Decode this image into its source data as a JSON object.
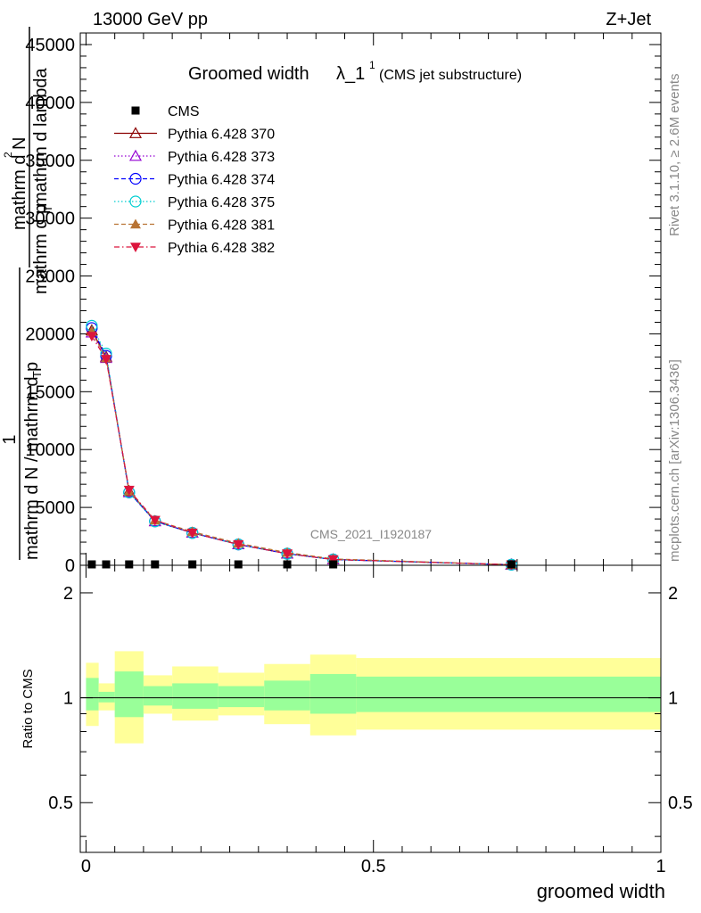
{
  "header": {
    "energy": "13000 GeV pp",
    "process": "Z+Jet",
    "title_main": "Groomed width",
    "title_lambda": "λ_1",
    "title_sup": "1",
    "title_sub": "(CMS jet substructure)",
    "rivet": "Rivet 3.1.10, ≥ 2.6M events",
    "mcplots": "mcplots.cern.ch [arXiv:1306.3436]",
    "watermark": "CMS_2021_I1920187"
  },
  "ylabel_main": {
    "numer1": "1",
    "denom1": "mathrm d N / mathrm d p",
    "denom1_sub": "T",
    "numer2": "mathrm d",
    "numer2_sup": "2",
    "numer2_rest": "N",
    "denom2": "mathrm d p",
    "denom2_sub": "T",
    "denom2_rest": " mathrm d lambda"
  },
  "ratio_panel": {
    "ylabel": "Ratio to CMS",
    "yticks": [
      "0.5",
      "1",
      "2"
    ]
  },
  "xaxis": {
    "label": "groomed width",
    "ticks": [
      "0",
      "0.5",
      "1"
    ]
  },
  "legend": [
    {
      "label": "CMS",
      "color": "#000000",
      "marker": "square",
      "dash": "none"
    },
    {
      "label": "Pythia 6.428 370",
      "color": "#8b0000",
      "marker": "triangle-open",
      "dash": "solid"
    },
    {
      "label": "Pythia 6.428 373",
      "color": "#9400d3",
      "marker": "triangle-open",
      "dash": "dotted"
    },
    {
      "label": "Pythia 6.428 374",
      "color": "#0000ff",
      "marker": "circle-open",
      "dash": "dashed"
    },
    {
      "label": "Pythia 6.428 375",
      "color": "#00ced1",
      "marker": "circle-open",
      "dash": "dotted"
    },
    {
      "label": "Pythia 6.428 381",
      "color": "#b87333",
      "marker": "triangle-filled",
      "dash": "dashed"
    },
    {
      "label": "Pythia 6.428 382",
      "color": "#dc143c",
      "marker": "triangle-down-filled",
      "dash": "dashdot"
    }
  ],
  "chart_data": {
    "type": "line",
    "x": [
      0.01,
      0.035,
      0.075,
      0.12,
      0.185,
      0.265,
      0.35,
      0.43,
      0.74
    ],
    "xlim": [
      -0.01,
      1.0
    ],
    "ylim": [
      0,
      46000
    ],
    "yticks": [
      "0",
      "5000",
      "10000",
      "15000",
      "20000",
      "25000",
      "30000",
      "35000",
      "40000",
      "45000"
    ],
    "cms": [
      0.4,
      0.3,
      0.3,
      0.2,
      0.15,
      0.1,
      0.08,
      0.05,
      0.01
    ],
    "series": [
      {
        "name": "Pythia 6.428 370",
        "values": [
          20300,
          18000,
          6400,
          3800,
          2800,
          1800,
          1000,
          500,
          50
        ]
      },
      {
        "name": "Pythia 6.428 373",
        "values": [
          20100,
          17900,
          6300,
          3800,
          2800,
          1800,
          1000,
          500,
          50
        ]
      },
      {
        "name": "Pythia 6.428 374",
        "values": [
          20500,
          18100,
          6300,
          3800,
          2800,
          1800,
          1000,
          500,
          50
        ]
      },
      {
        "name": "Pythia 6.428 375",
        "values": [
          20700,
          18300,
          6300,
          3800,
          2800,
          1800,
          1000,
          500,
          50
        ]
      },
      {
        "name": "Pythia 6.428 381",
        "values": [
          20200,
          17900,
          6400,
          3900,
          2900,
          1900,
          1100,
          550,
          50
        ]
      },
      {
        "name": "Pythia 6.428 382",
        "values": [
          19800,
          17800,
          6500,
          3900,
          2800,
          1800,
          1000,
          500,
          50
        ]
      }
    ],
    "ratio": {
      "ylim": [
        0.36,
        2.4
      ],
      "log": true,
      "bins": [
        {
          "lo": 0.0,
          "hi": 0.022,
          "in_lo": 0.92,
          "in_hi": 1.14,
          "out_lo": 0.83,
          "out_hi": 1.26
        },
        {
          "lo": 0.022,
          "hi": 0.05,
          "in_lo": 0.97,
          "in_hi": 1.04,
          "out_lo": 0.92,
          "out_hi": 1.1
        },
        {
          "lo": 0.05,
          "hi": 0.1,
          "in_lo": 0.88,
          "in_hi": 1.19,
          "out_lo": 0.74,
          "out_hi": 1.36
        },
        {
          "lo": 0.1,
          "hi": 0.15,
          "in_lo": 0.95,
          "in_hi": 1.08,
          "out_lo": 0.9,
          "out_hi": 1.16
        },
        {
          "lo": 0.15,
          "hi": 0.23,
          "in_lo": 0.93,
          "in_hi": 1.1,
          "out_lo": 0.86,
          "out_hi": 1.23
        },
        {
          "lo": 0.23,
          "hi": 0.31,
          "in_lo": 0.94,
          "in_hi": 1.08,
          "out_lo": 0.89,
          "out_hi": 1.18
        },
        {
          "lo": 0.31,
          "hi": 0.39,
          "in_lo": 0.92,
          "in_hi": 1.12,
          "out_lo": 0.84,
          "out_hi": 1.25
        },
        {
          "lo": 0.39,
          "hi": 0.47,
          "in_lo": 0.9,
          "in_hi": 1.17,
          "out_lo": 0.78,
          "out_hi": 1.33
        },
        {
          "lo": 0.47,
          "hi": 1.0,
          "in_lo": 0.91,
          "in_hi": 1.15,
          "out_lo": 0.81,
          "out_hi": 1.3
        }
      ]
    }
  }
}
